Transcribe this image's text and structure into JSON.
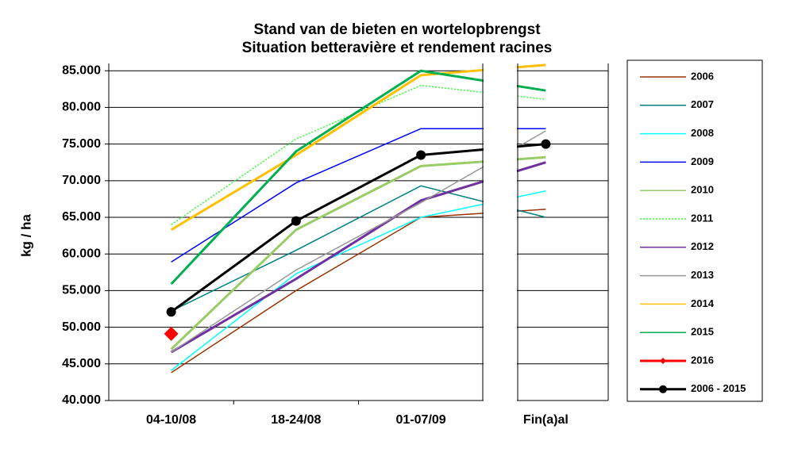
{
  "chart_data": {
    "type": "line",
    "title": "Stand van de bieten en wortelopbrengst",
    "subtitle": "Situation betteravière et rendement racines",
    "y_label": "kg / ha",
    "categories": [
      "04-10/08",
      "18-24/08",
      "01-07/09",
      "Fin(a)al"
    ],
    "ylim": [
      40000,
      86000
    ],
    "yticks": [
      {
        "value": 40000,
        "label": "40.000"
      },
      {
        "value": 45000,
        "label": "45.000"
      },
      {
        "value": 50000,
        "label": "50.000"
      },
      {
        "value": 55000,
        "label": "55.000"
      },
      {
        "value": 60000,
        "label": "60.000"
      },
      {
        "value": 65000,
        "label": "65.000"
      },
      {
        "value": 70000,
        "label": "70.000"
      },
      {
        "value": 75000,
        "label": "75.000"
      },
      {
        "value": 80000,
        "label": "80.000"
      },
      {
        "value": 85000,
        "label": "85.000"
      }
    ],
    "grid": true,
    "legend": "right",
    "series": [
      {
        "name": "2006",
        "color": "#993300",
        "values": [
          43800,
          55000,
          65000,
          66100
        ]
      },
      {
        "name": "2007",
        "color": "#008080",
        "values": [
          52200,
          60500,
          69300,
          65000
        ]
      },
      {
        "name": "2008",
        "color": "#00ffff",
        "values": [
          44100,
          57300,
          65000,
          68600
        ]
      },
      {
        "name": "2009",
        "color": "#0000ff",
        "values": [
          58900,
          69700,
          77100,
          77100
        ]
      },
      {
        "name": "2010",
        "color": "#99cc66",
        "values": [
          47000,
          63300,
          72000,
          73200
        ]
      },
      {
        "name": "2011",
        "color": "#33ff33",
        "dashed": true,
        "values": [
          64000,
          75700,
          83000,
          81100
        ]
      },
      {
        "name": "2012",
        "color": "#7030a0",
        "values": [
          46600,
          56600,
          67300,
          72500
        ]
      },
      {
        "name": "2013",
        "color": "#999999",
        "values": [
          46600,
          57800,
          67000,
          76800
        ]
      },
      {
        "name": "2014",
        "color": "#ffc000",
        "values": [
          63300,
          73500,
          84400,
          85800
        ]
      },
      {
        "name": "2015",
        "color": "#00b050",
        "values": [
          55900,
          74000,
          85000,
          82300
        ]
      },
      {
        "name": "2016",
        "color": "#ff0000",
        "marker": "diamond",
        "values": [
          49100,
          null,
          null,
          null
        ]
      },
      {
        "name": "2006 - 2015",
        "color": "#000000",
        "marker": "circle",
        "values": [
          52100,
          64500,
          73500,
          75000
        ]
      }
    ]
  }
}
